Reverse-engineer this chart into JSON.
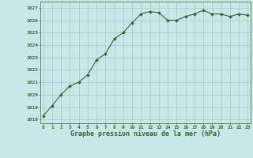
{
  "x": [
    0,
    1,
    2,
    3,
    4,
    5,
    6,
    7,
    8,
    9,
    10,
    11,
    12,
    13,
    14,
    15,
    16,
    17,
    18,
    19,
    20,
    21,
    22,
    23
  ],
  "y": [
    1018.3,
    1019.1,
    1020.0,
    1020.7,
    1021.0,
    1021.6,
    1022.8,
    1023.3,
    1024.5,
    1025.0,
    1025.8,
    1026.5,
    1026.7,
    1026.6,
    1026.0,
    1026.0,
    1026.3,
    1026.5,
    1026.8,
    1026.5,
    1026.5,
    1026.3,
    1026.5,
    1026.4
  ],
  "line_color": "#2d6a2d",
  "marker_color": "#2d6a2d",
  "bg_color": "#c8e8e8",
  "grid_color": "#a8c8c8",
  "text_color": "#2d6a2d",
  "xlabel": "Graphe pression niveau de la mer (hPa)",
  "ylim": [
    1017.7,
    1027.5
  ],
  "yticks": [
    1018,
    1019,
    1020,
    1021,
    1022,
    1023,
    1024,
    1025,
    1026,
    1027
  ],
  "xticks": [
    0,
    1,
    2,
    3,
    4,
    5,
    6,
    7,
    8,
    9,
    10,
    11,
    12,
    13,
    14,
    15,
    16,
    17,
    18,
    19,
    20,
    21,
    22,
    23
  ],
  "xlim": [
    -0.3,
    23.3
  ]
}
